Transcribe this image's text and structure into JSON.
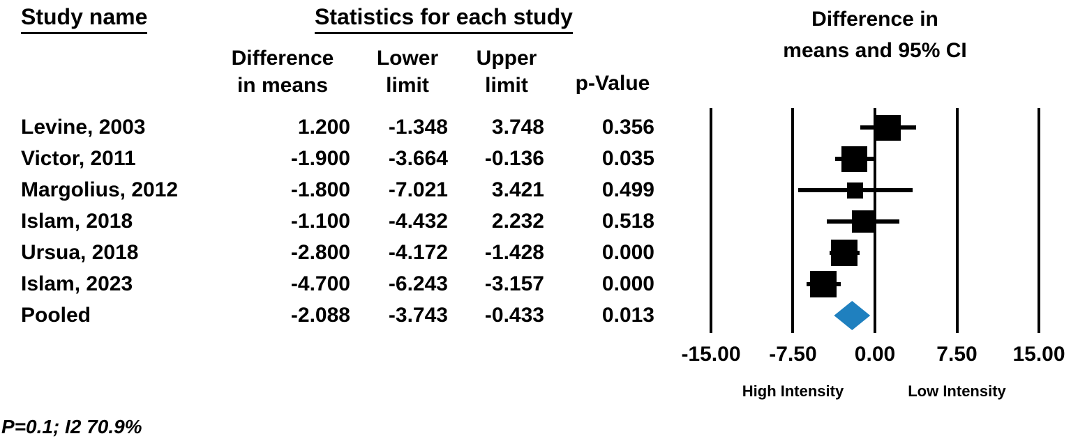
{
  "page": {
    "study_col_header": "Study name",
    "stats_header": "Statistics for each study",
    "plot_title_line1": "Difference in",
    "plot_title_line2": "means and 95% CI",
    "footnote": "P=0.1; I2 70.9%"
  },
  "table": {
    "columns": {
      "diff_line1": "Difference",
      "diff_line2": "in means",
      "lower_line1": "Lower",
      "lower_line2": "limit",
      "upper_line1": "Upper",
      "upper_line2": "limit",
      "p_label": "p-Value"
    },
    "rows": [
      {
        "study": "Levine, 2003",
        "diff": "1.200",
        "lower": "-1.348",
        "upper": "3.748",
        "p": "0.356"
      },
      {
        "study": "Victor, 2011",
        "diff": "-1.900",
        "lower": "-3.664",
        "upper": "-0.136",
        "p": "0.035"
      },
      {
        "study": "Margolius, 2012",
        "diff": "-1.800",
        "lower": "-7.021",
        "upper": "3.421",
        "p": "0.499"
      },
      {
        "study": "Islam, 2018",
        "diff": "-1.100",
        "lower": "-4.432",
        "upper": "2.232",
        "p": "0.518"
      },
      {
        "study": "Ursua, 2018",
        "diff": "-2.800",
        "lower": "-4.172",
        "upper": "-1.428",
        "p": "0.000"
      },
      {
        "study": "Islam, 2023",
        "diff": "-4.700",
        "lower": "-6.243",
        "upper": "-3.157",
        "p": "0.000"
      },
      {
        "study": "Pooled",
        "diff": "-2.088",
        "lower": "-3.743",
        "upper": "-0.433",
        "p": "0.013"
      }
    ]
  },
  "chart_data": {
    "type": "scatter",
    "variant": "forest-plot",
    "title": "Difference in means and 95% CI",
    "xlim": [
      -15,
      15
    ],
    "xticks": [
      -15,
      -7.5,
      0,
      7.5,
      15
    ],
    "xtick_labels": [
      "-15.00",
      "-7.50",
      "0.00",
      "7.50",
      "15.00"
    ],
    "axis_label_left": "High Intensity",
    "axis_label_right": "Low Intensity",
    "grid": "vertical-reference-lines",
    "marker_color": "#000000",
    "pooled_color": "#1f80bf",
    "studies": [
      {
        "name": "Levine, 2003",
        "mean": 1.2,
        "lower": -1.348,
        "upper": 3.748,
        "p": 0.356,
        "marker": "square",
        "marker_size": 37
      },
      {
        "name": "Victor, 2011",
        "mean": -1.9,
        "lower": -3.664,
        "upper": -0.136,
        "p": 0.035,
        "marker": "square",
        "marker_size": 37
      },
      {
        "name": "Margolius, 2012",
        "mean": -1.8,
        "lower": -7.021,
        "upper": 3.421,
        "p": 0.499,
        "marker": "square",
        "marker_size": 23
      },
      {
        "name": "Islam, 2018",
        "mean": -1.1,
        "lower": -4.432,
        "upper": 2.232,
        "p": 0.518,
        "marker": "square",
        "marker_size": 32
      },
      {
        "name": "Ursua, 2018",
        "mean": -2.8,
        "lower": -4.172,
        "upper": -1.428,
        "p": 0.0,
        "marker": "square",
        "marker_size": 38
      },
      {
        "name": "Islam, 2023",
        "mean": -4.7,
        "lower": -6.243,
        "upper": -3.157,
        "p": 0.0,
        "marker": "square",
        "marker_size": 38
      }
    ],
    "pooled": {
      "name": "Pooled",
      "mean": -2.088,
      "lower": -3.743,
      "upper": -0.433,
      "p": 0.013,
      "marker": "diamond",
      "diamond_height": 42
    },
    "heterogeneity": "P=0.1; I2 70.9%"
  }
}
